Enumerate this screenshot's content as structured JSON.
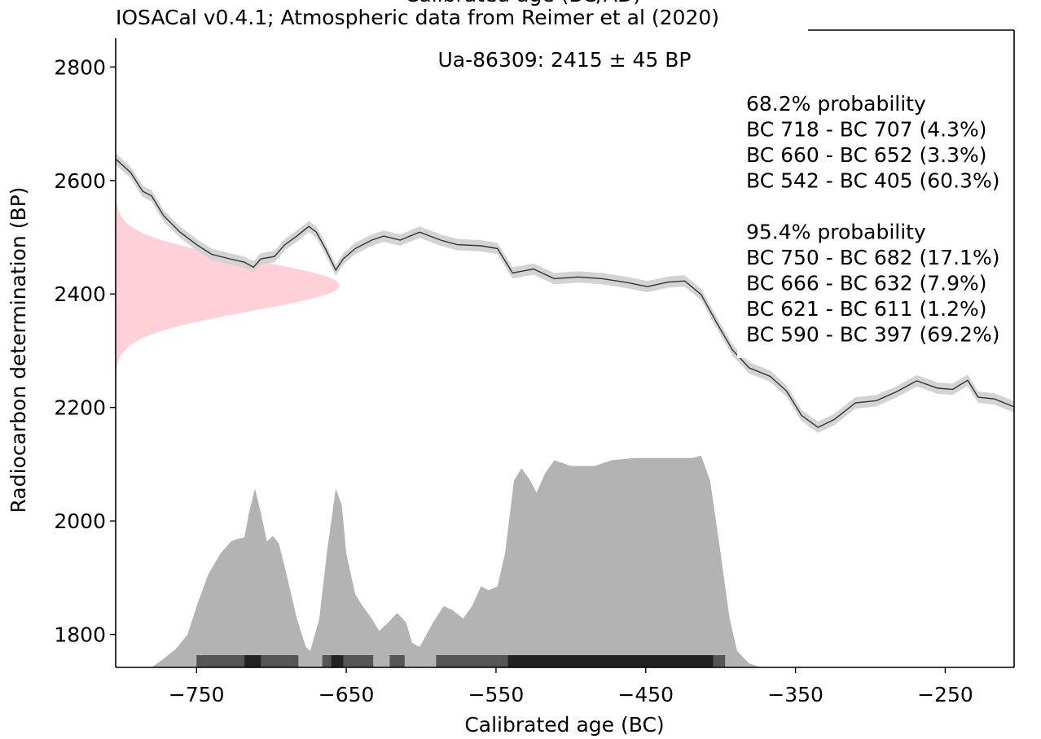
{
  "chart_data": {
    "type": "calibration",
    "title": "IOSACal v0.4.1; Atmospheric data from Reimer et al (2020)",
    "top_xlabel": "Calibrated age (BC/AD)",
    "xlabel": "Calibrated age (BC)",
    "ylabel": "Radiocarbon determination (BP)",
    "annotation": "Ua-86309: 2415 ± 45 BP",
    "determination": {
      "mean": 2415,
      "sd": 45,
      "color": "#ffc0cb"
    },
    "xlim": [
      -804,
      -204
    ],
    "xticks": [
      {
        "value": -750,
        "label": "−750"
      },
      {
        "value": -650,
        "label": "−650"
      },
      {
        "value": -550,
        "label": "−550"
      },
      {
        "value": -450,
        "label": "−450"
      },
      {
        "value": -350,
        "label": "−350"
      },
      {
        "value": -250,
        "label": "−250"
      }
    ],
    "ylim": [
      1742,
      2865
    ],
    "yticks": [
      1800,
      2000,
      2200,
      2400,
      2600,
      2800
    ],
    "curve": {
      "color": "#333333",
      "band_color": "#d3d3d3",
      "sigma": 10,
      "x": [
        -804,
        -794,
        -786,
        -780,
        -772,
        -761,
        -750,
        -740,
        -728,
        -718,
        -712,
        -707,
        -698,
        -691,
        -683,
        -675,
        -670,
        -664,
        -657,
        -652,
        -644,
        -633,
        -625,
        -614,
        -601,
        -587,
        -576,
        -560,
        -549,
        -539,
        -525,
        -511,
        -495,
        -479,
        -462,
        -449,
        -435,
        -424,
        -413,
        -403,
        -392,
        -381,
        -367,
        -356,
        -346,
        -335,
        -324,
        -310,
        -296,
        -283,
        -269,
        -255,
        -245,
        -235,
        -228,
        -217,
        -204
      ],
      "y": [
        2638,
        2614,
        2581,
        2573,
        2538,
        2509,
        2487,
        2470,
        2462,
        2456,
        2447,
        2462,
        2466,
        2487,
        2502,
        2519,
        2509,
        2480,
        2442,
        2462,
        2480,
        2495,
        2502,
        2495,
        2509,
        2495,
        2487,
        2485,
        2480,
        2437,
        2444,
        2427,
        2430,
        2427,
        2420,
        2413,
        2421,
        2423,
        2399,
        2351,
        2301,
        2270,
        2255,
        2229,
        2186,
        2165,
        2179,
        2208,
        2212,
        2227,
        2247,
        2234,
        2232,
        2248,
        2218,
        2215,
        2201
      ]
    },
    "calibrated": {
      "color": "#b3b3b3",
      "x": [
        -780,
        -772,
        -764,
        -756,
        -749,
        -742,
        -734,
        -727,
        -723,
        -718,
        -715,
        -711,
        -707,
        -703,
        -699,
        -695,
        -690,
        -683,
        -677,
        -674,
        -668,
        -663,
        -657,
        -653,
        -650,
        -644,
        -639,
        -633,
        -628,
        -622,
        -616,
        -610,
        -606,
        -601,
        -592,
        -585,
        -579,
        -572,
        -566,
        -560,
        -555,
        -549,
        -544,
        -538,
        -533,
        -527,
        -523,
        -517,
        -511,
        -500,
        -484,
        -473,
        -457,
        -435,
        -419,
        -413,
        -407,
        -400,
        -394,
        -389,
        -381,
        -373
      ],
      "y": [
        1742,
        1757,
        1774,
        1800,
        1857,
        1907,
        1943,
        1964,
        1968,
        1971,
        2014,
        2057,
        2014,
        1964,
        1974,
        1960,
        1907,
        1828,
        1778,
        1771,
        1828,
        1943,
        2057,
        2028,
        1943,
        1871,
        1850,
        1828,
        1806,
        1821,
        1838,
        1821,
        1785,
        1778,
        1821,
        1850,
        1843,
        1828,
        1850,
        1885,
        1878,
        1885,
        1943,
        2071,
        2093,
        2071,
        2050,
        2085,
        2107,
        2097,
        2097,
        2107,
        2111,
        2111,
        2111,
        2115,
        2071,
        1943,
        1828,
        1771,
        1749,
        1742
      ]
    },
    "intervals": [
      {
        "label": "68.2% probability",
        "color": "#222222",
        "ranges": [
          [
            -718,
            -707
          ],
          [
            -660,
            -652
          ],
          [
            -542,
            -405
          ]
        ],
        "range_labels": [
          "BC 718 - BC 707 (4.3%)",
          "BC 660 - BC 652 (3.3%)",
          "BC 542 - BC 405 (60.3%)"
        ]
      },
      {
        "label": "95.4% probability",
        "color": "#555555",
        "ranges": [
          [
            -750,
            -682
          ],
          [
            -666,
            -632
          ],
          [
            -621,
            -611
          ],
          [
            -590,
            -397
          ]
        ],
        "range_labels": [
          "BC 750 - BC 682 (17.1%)",
          "BC 666 - BC 632 (7.9%)",
          "BC 621 - BC 611 (1.2%)",
          "BC 590 - BC 397 (69.2%)"
        ]
      }
    ]
  }
}
